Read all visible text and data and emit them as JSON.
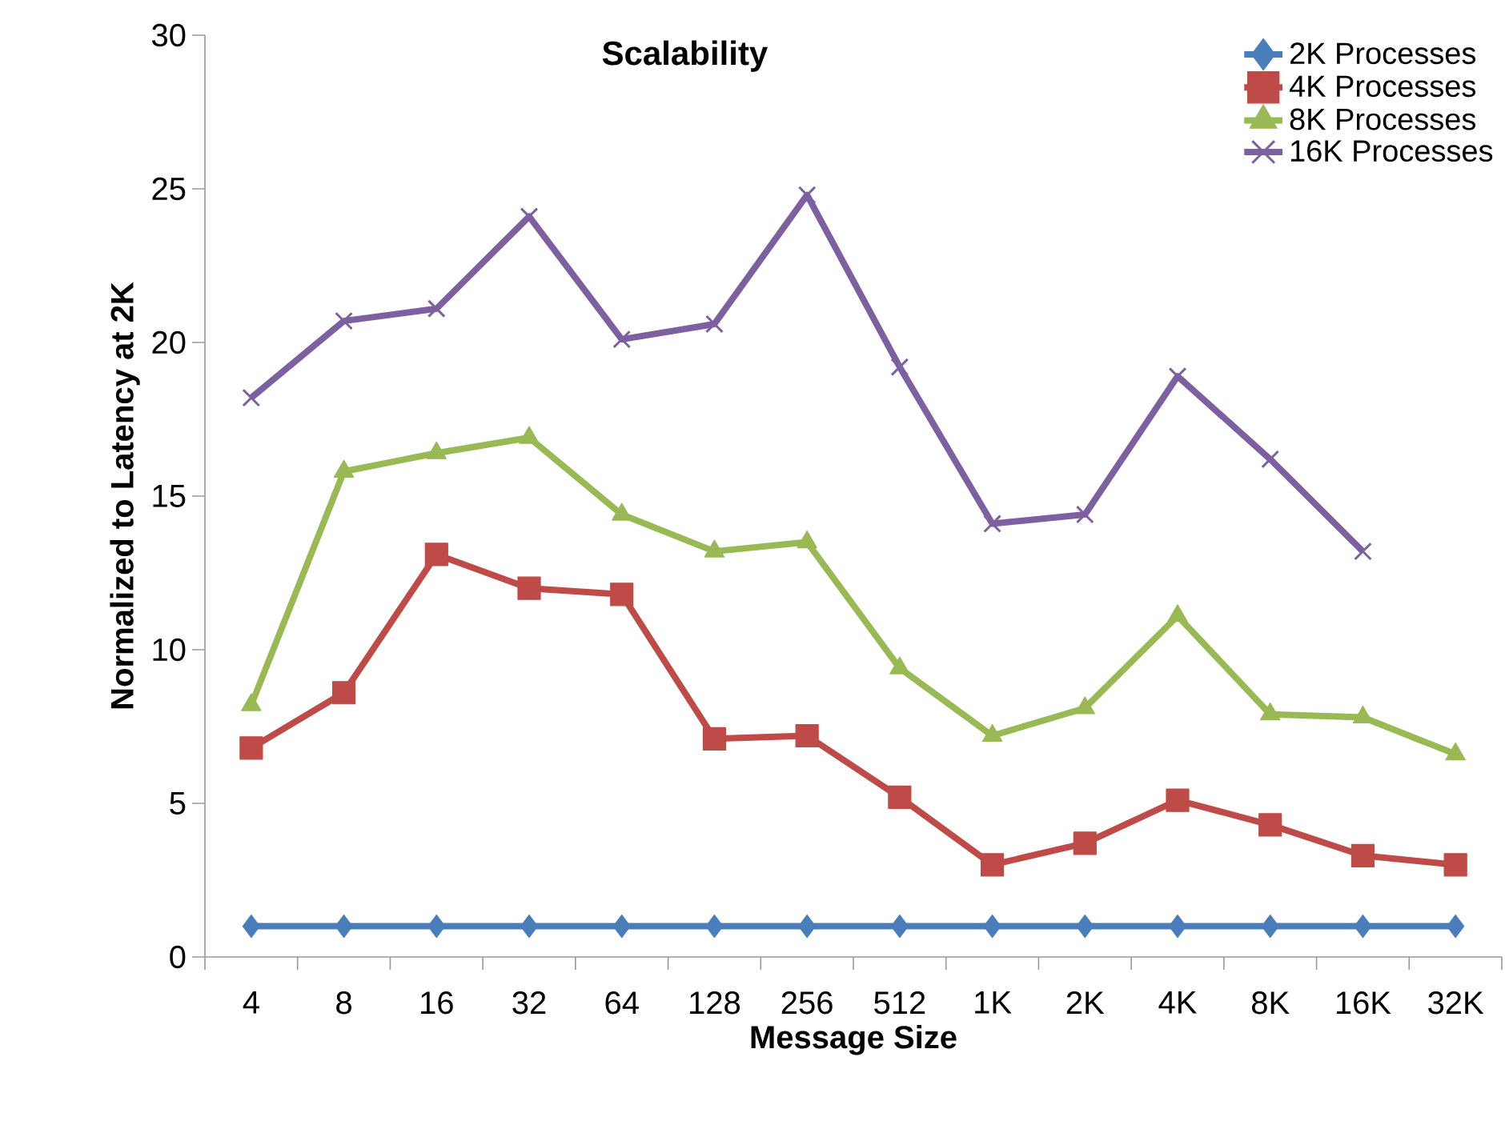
{
  "chart_data": {
    "type": "line",
    "title": "Scalability",
    "xlabel": "Message Size",
    "ylabel": "Normalized to Latency at 2K",
    "categories": [
      "4",
      "8",
      "16",
      "32",
      "64",
      "128",
      "256",
      "512",
      "1K",
      "2K",
      "4K",
      "8K",
      "16K",
      "32K"
    ],
    "series": [
      {
        "name": "2K Processes",
        "color": "#4a7ebb",
        "marker": "diamond",
        "values": [
          1,
          1,
          1,
          1,
          1,
          1,
          1,
          1,
          1,
          1,
          1,
          1,
          1,
          1
        ]
      },
      {
        "name": "4K Processes",
        "color": "#be4b48",
        "marker": "square",
        "values": [
          6.8,
          8.6,
          13.1,
          12.0,
          11.8,
          7.1,
          7.2,
          5.2,
          3.0,
          3.7,
          5.1,
          4.3,
          3.3,
          3.0
        ]
      },
      {
        "name": "8K Processes",
        "color": "#98b954",
        "marker": "triangle",
        "values": [
          8.2,
          15.8,
          16.4,
          16.9,
          14.4,
          13.2,
          13.5,
          9.4,
          7.2,
          8.1,
          11.1,
          7.9,
          7.8,
          6.6
        ]
      },
      {
        "name": "16K Processes",
        "color": "#7d60a0",
        "marker": "cross",
        "values": [
          18.2,
          20.7,
          21.1,
          24.1,
          20.1,
          20.6,
          24.8,
          19.2,
          14.1,
          14.4,
          18.9,
          16.2,
          13.2,
          null
        ]
      }
    ],
    "ylim": [
      0,
      30
    ],
    "yticks": [
      0,
      5,
      10,
      15,
      20,
      25,
      30
    ],
    "legend": "top right",
    "grid": false,
    "line_style": "solid"
  }
}
